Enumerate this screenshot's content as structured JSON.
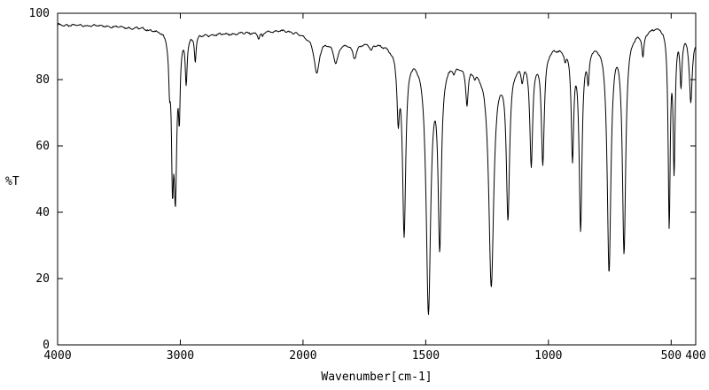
{
  "chart_data": {
    "type": "line",
    "title": "",
    "xlabel": "Wavenumber[cm-1]",
    "ylabel": "%T",
    "line_color": "#000000",
    "background_color": "#ffffff",
    "x_axis": {
      "max": 4000,
      "min": 400,
      "reversed": true,
      "ticks": [
        4000,
        3000,
        2000,
        1500,
        1000,
        500,
        400
      ],
      "split_at": 2000,
      "split_fraction": 0.3846,
      "note": "region 4000-2000 cm-1 is compressed 2x relative to 2000-400 cm-1"
    },
    "y_axis": {
      "min": 0,
      "max": 100,
      "ticks": [
        0,
        20,
        40,
        60,
        80,
        100
      ]
    },
    "grid": false,
    "legend": false,
    "peaks_format": [
      "wavenumber_cm1",
      "min_percent_T",
      "half_width_cm1"
    ],
    "peaks": [
      [
        3088,
        83,
        8
      ],
      [
        3064,
        57,
        10
      ],
      [
        3040,
        49,
        14
      ],
      [
        3008,
        74,
        8
      ],
      [
        2952,
        80,
        9
      ],
      [
        2878,
        86,
        8
      ],
      [
        2360,
        92.5,
        10
      ],
      [
        2330,
        93,
        8
      ],
      [
        1944,
        82,
        12
      ],
      [
        1866,
        85.5,
        11
      ],
      [
        1790,
        87,
        10
      ],
      [
        1722,
        89.5,
        8
      ],
      [
        1612,
        72,
        6
      ],
      [
        1588,
        35,
        8
      ],
      [
        1489,
        11,
        11
      ],
      [
        1443,
        33,
        8
      ],
      [
        1385,
        84,
        5
      ],
      [
        1332,
        74,
        6
      ],
      [
        1300,
        83,
        5
      ],
      [
        1233,
        18,
        12
      ],
      [
        1165,
        40,
        8
      ],
      [
        1107,
        82,
        5
      ],
      [
        1070,
        55,
        7
      ],
      [
        1023,
        56,
        7
      ],
      [
        932,
        88,
        5
      ],
      [
        902,
        58,
        6
      ],
      [
        869,
        36,
        7
      ],
      [
        838,
        82,
        5
      ],
      [
        753,
        23,
        9
      ],
      [
        692,
        29,
        8
      ],
      [
        615,
        88,
        5
      ],
      [
        508,
        38,
        5
      ],
      [
        488,
        55,
        5
      ],
      [
        460,
        80,
        5
      ],
      [
        420,
        74,
        7
      ]
    ],
    "baseline_format": [
      "wavenumber_cm1",
      "percent_T"
    ],
    "baseline": [
      [
        4000,
        96.5
      ],
      [
        3600,
        96.2
      ],
      [
        3300,
        95.5
      ],
      [
        3150,
        95.0
      ],
      [
        2980,
        94.2
      ],
      [
        2800,
        93.6
      ],
      [
        2500,
        94.0
      ],
      [
        2200,
        94.8
      ],
      [
        2050,
        94.3
      ],
      [
        1990,
        93.2
      ],
      [
        1900,
        91.5
      ],
      [
        1820,
        91.0
      ],
      [
        1760,
        91.2
      ],
      [
        1700,
        91.5
      ],
      [
        1640,
        90.0
      ],
      [
        1560,
        88.5
      ],
      [
        1520,
        88.0
      ],
      [
        1470,
        87.0
      ],
      [
        1400,
        86.0
      ],
      [
        1360,
        85.5
      ],
      [
        1280,
        84.5
      ],
      [
        1200,
        85.0
      ],
      [
        1140,
        85.5
      ],
      [
        1090,
        87.0
      ],
      [
        1045,
        88.0
      ],
      [
        995,
        90.0
      ],
      [
        940,
        90.5
      ],
      [
        885,
        90.5
      ],
      [
        820,
        91.5
      ],
      [
        775,
        92.5
      ],
      [
        715,
        93.5
      ],
      [
        655,
        94.5
      ],
      [
        595,
        95.5
      ],
      [
        555,
        96.5
      ],
      [
        535,
        96.8
      ],
      [
        505,
        96.2
      ],
      [
        475,
        95.5
      ],
      [
        440,
        94.5
      ],
      [
        400,
        92.5
      ]
    ]
  }
}
